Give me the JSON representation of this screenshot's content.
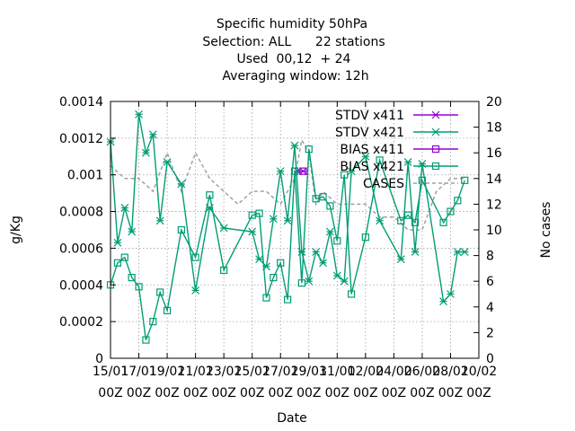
{
  "chart_data": {
    "type": "line",
    "title_lines": [
      "Specific humidity 50hPa",
      "Selection: ALL      22 stations",
      "Used  00,12  + 24",
      "Averaging window: 12h"
    ],
    "xlabel": "Date",
    "ylabel": "g/Kg",
    "y2label": "No cases",
    "xlim": [
      0,
      13
    ],
    "ylim": [
      0,
      0.0014
    ],
    "y2lim": [
      0,
      20
    ],
    "grid": true,
    "legend_position": "top-right",
    "x_ticks": [
      {
        "pos": 0,
        "l1": "15/01",
        "l2": "00Z"
      },
      {
        "pos": 1,
        "l1": "17/01",
        "l2": "00Z"
      },
      {
        "pos": 2,
        "l1": "19/01",
        "l2": "00Z"
      },
      {
        "pos": 3,
        "l1": "21/01",
        "l2": "00Z"
      },
      {
        "pos": 4,
        "l1": "23/01",
        "l2": "00Z"
      },
      {
        "pos": 5,
        "l1": "25/01",
        "l2": "00Z"
      },
      {
        "pos": 6,
        "l1": "27/01",
        "l2": "00Z"
      },
      {
        "pos": 7,
        "l1": "29/01",
        "l2": "00Z"
      },
      {
        "pos": 8,
        "l1": "31/01",
        "l2": "00Z"
      },
      {
        "pos": 9,
        "l1": "02/02",
        "l2": "00Z"
      },
      {
        "pos": 10,
        "l1": "04/02",
        "l2": "00Z"
      },
      {
        "pos": 11,
        "l1": "06/02",
        "l2": "00Z"
      },
      {
        "pos": 12,
        "l1": "08/02",
        "l2": "00Z"
      },
      {
        "pos": 13,
        "l1": "10/02",
        "l2": "00Z"
      }
    ],
    "y_ticks": [
      {
        "v": 0,
        "label": "0"
      },
      {
        "v": 0.0002,
        "label": "0.0002"
      },
      {
        "v": 0.0004,
        "label": "0.0004"
      },
      {
        "v": 0.0006,
        "label": "0.0006"
      },
      {
        "v": 0.0008,
        "label": "0.0008"
      },
      {
        "v": 0.001,
        "label": "0.001"
      },
      {
        "v": 0.0012,
        "label": "0.0012"
      },
      {
        "v": 0.0014,
        "label": "0.0014"
      }
    ],
    "y2_ticks": [
      {
        "v": 0,
        "label": "0"
      },
      {
        "v": 2,
        "label": "2"
      },
      {
        "v": 4,
        "label": "4"
      },
      {
        "v": 6,
        "label": "6"
      },
      {
        "v": 8,
        "label": "8"
      },
      {
        "v": 10,
        "label": "10"
      },
      {
        "v": 12,
        "label": "12"
      },
      {
        "v": 14,
        "label": "14"
      },
      {
        "v": 16,
        "label": "16"
      },
      {
        "v": 18,
        "label": "18"
      },
      {
        "v": 20,
        "label": "20"
      }
    ],
    "series": [
      {
        "name": "STDV x411",
        "color": "#9400d3",
        "marker": "asterisk",
        "axis": "y",
        "x": [
          6.6,
          6.8
        ],
        "y": [
          0.00102,
          0.00102
        ]
      },
      {
        "name": "STDV x421",
        "color": "#009e73",
        "marker": "asterisk",
        "axis": "y",
        "x": [
          0,
          0.25,
          0.5,
          0.75,
          1.0,
          1.25,
          1.5,
          1.75,
          2.0,
          2.5,
          3.0,
          3.5,
          4.0,
          5.0,
          5.25,
          5.5,
          5.75,
          6.0,
          6.25,
          6.5,
          6.75,
          7.0,
          7.25,
          7.5,
          7.75,
          8.0,
          8.25,
          8.5,
          9.0,
          9.5,
          10.25,
          10.5,
          10.75,
          11.0,
          11.75,
          12.0,
          12.25,
          12.5
        ],
        "y": [
          0.00118,
          0.00063,
          0.00082,
          0.00069,
          0.00133,
          0.00112,
          0.00122,
          0.00075,
          0.00107,
          0.00095,
          0.00037,
          0.00082,
          0.00071,
          0.00069,
          0.00054,
          0.0005,
          0.00076,
          0.00102,
          0.00075,
          0.00116,
          0.00058,
          0.00042,
          0.00058,
          0.00052,
          0.00069,
          0.00045,
          0.00042,
          0.00102,
          0.0011,
          0.00075,
          0.00054,
          0.00107,
          0.00058,
          0.00106,
          0.00031,
          0.00035,
          0.00058,
          0.00058
        ]
      },
      {
        "name": "BIAS x411",
        "color": "#9400d3",
        "marker": "square",
        "axis": "y",
        "x": [
          6.8
        ],
        "y": [
          0.00102
        ]
      },
      {
        "name": "BIAS x421",
        "color": "#009e73",
        "marker": "square",
        "axis": "y",
        "x": [
          0,
          0.25,
          0.5,
          0.75,
          1.0,
          1.25,
          1.5,
          1.75,
          2.0,
          2.5,
          3.0,
          3.5,
          4.0,
          5.0,
          5.25,
          5.5,
          5.75,
          6.0,
          6.25,
          6.5,
          6.75,
          7.0,
          7.25,
          7.5,
          7.75,
          8.0,
          8.25,
          8.5,
          9.0,
          9.5,
          10.25,
          10.5,
          10.75,
          11.0,
          11.75,
          12.0,
          12.25,
          12.5
        ],
        "y": [
          0.0004,
          0.00052,
          0.00055,
          0.00044,
          0.00039,
          0.0001,
          0.0002,
          0.00036,
          0.00026,
          0.0007,
          0.00055,
          0.00089,
          0.00048,
          0.00078,
          0.00079,
          0.00033,
          0.00044,
          0.00052,
          0.00032,
          0.00102,
          0.00041,
          0.00114,
          0.00087,
          0.00088,
          0.00083,
          0.00064,
          0.001,
          0.00035,
          0.00066,
          0.00108,
          0.00075,
          0.00078,
          0.00074,
          0.00097,
          0.00074,
          0.0008,
          0.00086,
          0.00097
        ]
      },
      {
        "name": "CASES",
        "color": "#a0a0a0",
        "dashed": true,
        "axis": "y2",
        "x": [
          0,
          0.5,
          1.0,
          1.5,
          2.0,
          2.5,
          3.0,
          3.5,
          4.0,
          4.5,
          5.0,
          5.5,
          6.0,
          6.5,
          6.75,
          7.0,
          7.25,
          7.5,
          8.0,
          8.5,
          9.0,
          9.5,
          10.0,
          10.5,
          11.0,
          11.5,
          12.0,
          12.5
        ],
        "y": [
          15,
          14,
          14,
          13,
          16,
          13,
          16,
          14,
          13,
          12,
          13,
          13,
          12,
          14,
          17,
          16,
          12,
          13,
          12,
          12,
          12,
          11,
          11,
          10,
          10,
          13,
          14,
          14
        ]
      }
    ]
  }
}
